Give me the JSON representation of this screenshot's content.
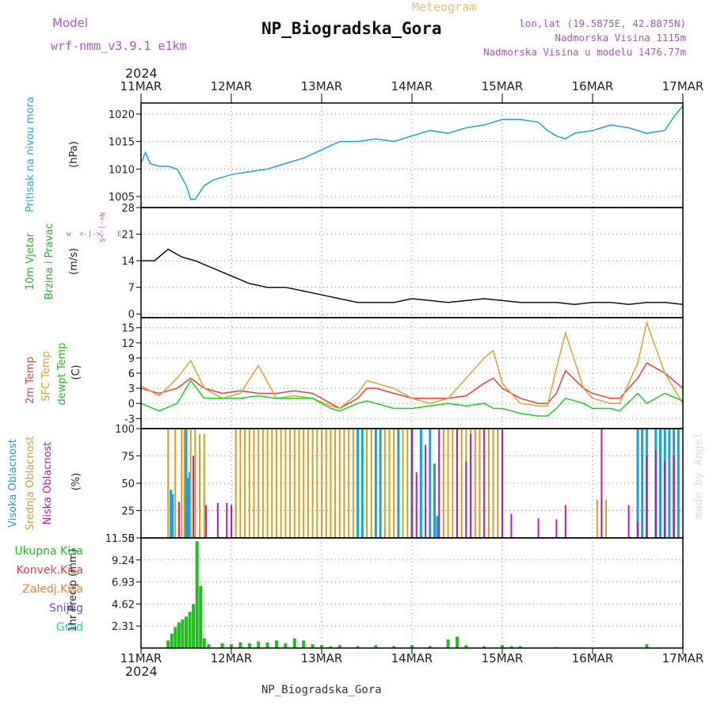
{
  "header": {
    "model_label": "Model",
    "model_name": "wrf-nmm_v3.9.1  e1km",
    "meteogram": "Meteogram",
    "station": "NP_Biogradska_Gora",
    "lonlat": "lon,lat (19.5875E, 42.8875N)",
    "elev": "Nadmorska Visina 1115m",
    "elev_model": "Nadmorska Visina u modelu 1476.77m",
    "footer_station": "NP_Biogradska_Gora",
    "watermark": "made by Angel",
    "year": "2024",
    "wind_legend": "w <-|-> E",
    "wind_legend_v": "N\n^\n|\nv\nS"
  },
  "colors": {
    "pressure": "#1e9fe6",
    "t2m": "#e84040",
    "sfc": "#e0a030",
    "dewpt": "#22cc22",
    "high_cloud": "#1a9ee6",
    "mid_cloud": "#d4a020",
    "low_cloud": "#b020b0",
    "total_precip": "#22bb22",
    "grid": "#888888",
    "labels_purple": "#aa55cc"
  },
  "x_axis": {
    "ticks": [
      "11MAR",
      "12MAR",
      "13MAR",
      "14MAR",
      "15MAR",
      "16MAR",
      "17MAR"
    ]
  },
  "panels": {
    "pressure": {
      "ylabel_a": "Pritisak na nivou mora",
      "ylabel_b": "(hPa)"
    },
    "wind": {
      "ylabel_a": "10m Vjetar",
      "ylabel_b": "Brzina i Pravac",
      "ylabel_c": "(m/s)"
    },
    "temp": {
      "ylabel_a": "2m Temp",
      "ylabel_b": "SFC Temp",
      "ylabel_c": "dewpt Temp",
      "ylabel_d": "(C)"
    },
    "cloud": {
      "ylabel_a": "Visoka Oblacnost",
      "ylabel_b": "Srednja Oblacnost",
      "ylabel_c": "Niska Oblacnost",
      "ylabel_d": "(%)"
    },
    "precip": {
      "ylabel": "1hr Precip (mm)",
      "legend": [
        {
          "label": "Ukupna Kisa",
          "color": "#22bb22"
        },
        {
          "label": "Konvek.Kisa",
          "color": "#e84040"
        },
        {
          "label": "Zaledj.Kisa",
          "color": "#f08030"
        },
        {
          "label": "Snijeg",
          "color": "#5555ee"
        },
        {
          "label": "Grad",
          "color": "#22cccc"
        }
      ]
    }
  },
  "chart_data": [
    {
      "type": "line",
      "x_start": "11MAR 2024",
      "x_end": "17MAR 2024",
      "ylim": [
        1003,
        1022
      ],
      "yticks": [
        1005,
        1010,
        1015,
        1020
      ],
      "series": [
        {
          "x": [
            0,
            0.05,
            0.1,
            0.2,
            0.3,
            0.4,
            0.5,
            0.55,
            0.6,
            0.7,
            0.8,
            1.0,
            1.2,
            1.4,
            1.6,
            1.8,
            2.0,
            2.2,
            2.4,
            2.6,
            2.8,
            3.0,
            3.2,
            3.4,
            3.6,
            3.8,
            4.0,
            4.2,
            4.4,
            4.5,
            4.6,
            4.7,
            4.8,
            5.0,
            5.2,
            5.4,
            5.6,
            5.8,
            5.9,
            6.0
          ],
          "y": [
            1011,
            1013,
            1011,
            1010.5,
            1010.5,
            1010,
            1007,
            1004.5,
            1004.5,
            1007,
            1008,
            1009,
            1009.5,
            1010,
            1011,
            1012,
            1013.5,
            1015,
            1015,
            1015.5,
            1015,
            1016,
            1017,
            1016.5,
            1017.5,
            1018,
            1019,
            1019,
            1018.5,
            1017,
            1016,
            1015.5,
            1016.5,
            1017,
            1018,
            1017.5,
            1016.5,
            1017,
            1019.5,
            1021.5
          ]
        }
      ]
    },
    {
      "type": "line",
      "ylim": [
        -1,
        28
      ],
      "yticks": [
        0,
        7,
        14,
        21,
        28
      ],
      "series": [
        {
          "x": [
            0,
            0.15,
            0.3,
            0.45,
            0.6,
            0.8,
            1.0,
            1.2,
            1.4,
            1.6,
            1.8,
            2.0,
            2.2,
            2.4,
            2.6,
            2.8,
            3.0,
            3.2,
            3.4,
            3.6,
            3.8,
            4.0,
            4.2,
            4.4,
            4.6,
            4.8,
            5.0,
            5.2,
            5.4,
            5.6,
            5.8,
            6.0
          ],
          "y": [
            14,
            14,
            17,
            15,
            14,
            12,
            10,
            8,
            7,
            7,
            6,
            5,
            4,
            3,
            3,
            3,
            4,
            3.5,
            3,
            3.5,
            4,
            3.5,
            3,
            3,
            3,
            2.5,
            3,
            3,
            2.5,
            3,
            3,
            2.5
          ]
        }
      ]
    },
    {
      "type": "line",
      "ylim": [
        -5,
        17
      ],
      "yticks": [
        -3,
        0,
        3,
        6,
        9,
        12,
        15
      ],
      "series": [
        {
          "name": "2m Temp",
          "x": [
            0,
            0.2,
            0.4,
            0.55,
            0.7,
            0.9,
            1.1,
            1.3,
            1.5,
            1.7,
            1.9,
            2.1,
            2.2,
            2.4,
            2.5,
            2.6,
            2.8,
            3.0,
            3.2,
            3.4,
            3.6,
            3.8,
            3.9,
            4.0,
            4.2,
            4.4,
            4.5,
            4.6,
            4.7,
            4.9,
            5.0,
            5.2,
            5.3,
            5.5,
            5.6,
            5.8,
            6.0
          ],
          "y": [
            3,
            2,
            3,
            5,
            3,
            2,
            2.5,
            2,
            2,
            2.5,
            2,
            0,
            -1,
            1,
            3,
            3,
            2,
            1,
            1,
            1,
            1.5,
            4,
            5,
            3,
            1,
            0,
            0,
            2,
            6.5,
            3,
            2,
            1,
            1,
            5,
            8,
            6,
            3
          ]
        },
        {
          "name": "SFC Temp",
          "x": [
            0,
            0.2,
            0.4,
            0.55,
            0.7,
            0.9,
            1.1,
            1.3,
            1.5,
            1.7,
            1.9,
            2.1,
            2.2,
            2.4,
            2.5,
            2.6,
            2.8,
            3.0,
            3.2,
            3.4,
            3.6,
            3.8,
            3.9,
            4.0,
            4.2,
            4.4,
            4.5,
            4.6,
            4.7,
            4.9,
            5.0,
            5.2,
            5.3,
            5.5,
            5.6,
            5.8,
            6.0
          ],
          "y": [
            3.5,
            1.5,
            5,
            8.5,
            3,
            1,
            2,
            7.5,
            1,
            1.5,
            1,
            -0.5,
            -1,
            2,
            4.5,
            4,
            3,
            1,
            0,
            1,
            5,
            9,
            10.5,
            4,
            0,
            -0.5,
            -0.5,
            7,
            14,
            3,
            1,
            0,
            0,
            8,
            16,
            6,
            0
          ]
        },
        {
          "name": "dewpt Temp",
          "x": [
            0,
            0.2,
            0.4,
            0.55,
            0.7,
            0.9,
            1.1,
            1.3,
            1.5,
            1.7,
            1.9,
            2.1,
            2.2,
            2.4,
            2.5,
            2.6,
            2.8,
            3.0,
            3.2,
            3.4,
            3.6,
            3.8,
            3.9,
            4.0,
            4.2,
            4.4,
            4.5,
            4.6,
            4.7,
            4.9,
            5.0,
            5.2,
            5.3,
            5.5,
            5.6,
            5.8,
            6.0
          ],
          "y": [
            0,
            -1.5,
            0,
            4.5,
            1,
            1,
            1,
            1.5,
            1,
            1,
            1,
            -1,
            -1.5,
            0,
            0.5,
            0,
            -1,
            -1,
            -0.5,
            0,
            -0.5,
            0,
            -1,
            -1,
            -2,
            -2.5,
            -2.5,
            -1,
            1,
            0,
            -1,
            -1,
            -1.5,
            2,
            0,
            2,
            0.5
          ]
        }
      ]
    },
    {
      "type": "bar",
      "ylim": [
        0,
        100
      ],
      "yticks": [
        0,
        25,
        50,
        75,
        100
      ],
      "series": [
        {
          "name": "Visoka Oblacnost",
          "x": [
            0.33,
            0.35,
            0.5,
            0.52,
            0.54,
            2.4,
            2.45,
            2.6,
            2.65,
            2.85,
            3.0,
            3.1,
            3.2,
            3.25,
            3.28,
            5.5,
            5.55,
            5.6,
            5.7,
            5.75,
            5.8,
            5.85,
            5.9,
            5.95
          ],
          "values": [
            44,
            40,
            100,
            55,
            60,
            100,
            100,
            100,
            100,
            100,
            100,
            100,
            100,
            68,
            20,
            100,
            100,
            100,
            100,
            100,
            100,
            100,
            100,
            100
          ]
        },
        {
          "name": "Srednja Oblacnost",
          "x": [
            0.3,
            0.38,
            0.45,
            0.48,
            0.55,
            0.6,
            0.65,
            0.7,
            1.05,
            1.1,
            1.15,
            1.2,
            1.25,
            1.3,
            1.35,
            1.4,
            1.45,
            1.5,
            1.55,
            1.6,
            1.65,
            1.7,
            1.75,
            1.8,
            1.85,
            1.9,
            1.95,
            2.0,
            2.05,
            2.1,
            2.15,
            2.2,
            2.25,
            2.3,
            2.35,
            2.5,
            2.55,
            2.7,
            2.75,
            2.8,
            2.9,
            2.95,
            3.35,
            3.4,
            3.45,
            3.5,
            3.55,
            3.6,
            3.65,
            3.7,
            3.75,
            3.8,
            3.85,
            3.9,
            3.95,
            5.05,
            5.1,
            5.15
          ],
          "values": [
            100,
            100,
            100,
            100,
            100,
            100,
            95,
            95,
            100,
            100,
            100,
            100,
            100,
            100,
            100,
            100,
            100,
            100,
            100,
            100,
            100,
            100,
            100,
            100,
            100,
            100,
            100,
            100,
            100,
            100,
            100,
            100,
            100,
            100,
            100,
            100,
            100,
            100,
            100,
            100,
            100,
            100,
            100,
            100,
            100,
            100,
            100,
            100,
            100,
            100,
            100,
            100,
            100,
            100,
            100,
            35,
            40,
            35
          ]
        },
        {
          "name": "Niska Oblacnost",
          "x": [
            0.42,
            0.58,
            0.72,
            0.85,
            0.95,
            1.0,
            3.0,
            3.05,
            3.15,
            3.3,
            3.5,
            3.6,
            3.65,
            3.8,
            4.0,
            4.1,
            4.4,
            4.6,
            4.7,
            5.1,
            5.4,
            5.5,
            5.6,
            5.7,
            5.8,
            5.9
          ],
          "values": [
            33,
            75,
            30,
            32,
            32,
            30,
            100,
            60,
            85,
            100,
            100,
            70,
            95,
            100,
            100,
            22,
            18,
            17,
            30,
            100,
            30,
            15,
            75,
            80,
            70,
            75
          ]
        }
      ]
    },
    {
      "type": "bar",
      "ylim": [
        0,
        11.55
      ],
      "yticks": [
        2.31,
        4.62,
        6.93,
        9.24,
        11.55
      ],
      "series": [
        {
          "name": "Ukupna Kisa",
          "x": [
            0.3,
            0.34,
            0.38,
            0.42,
            0.46,
            0.5,
            0.54,
            0.58,
            0.62,
            0.66,
            0.7,
            0.75,
            0.9,
            1.0,
            1.1,
            1.2,
            1.3,
            1.4,
            1.5,
            1.6,
            1.7,
            1.8,
            1.9,
            2.0,
            2.1,
            2.2,
            2.4,
            2.6,
            2.8,
            3.0,
            3.2,
            3.4,
            3.5,
            3.6,
            3.8,
            4.0,
            4.1,
            4.2,
            4.6,
            5.6
          ],
          "values": [
            0.8,
            1.5,
            2.2,
            2.7,
            3.0,
            3.3,
            3.8,
            4.6,
            11.2,
            6.5,
            1.0,
            0.4,
            0.5,
            0.4,
            0.6,
            0.5,
            0.7,
            0.6,
            0.8,
            0.5,
            1.0,
            0.8,
            0.4,
            0.3,
            0.2,
            0.3,
            0.2,
            0.3,
            0.2,
            0.3,
            0.2,
            0.9,
            1.2,
            0.3,
            0.2,
            0.3,
            0.2,
            0.2,
            0.1,
            0.4
          ]
        }
      ]
    }
  ]
}
